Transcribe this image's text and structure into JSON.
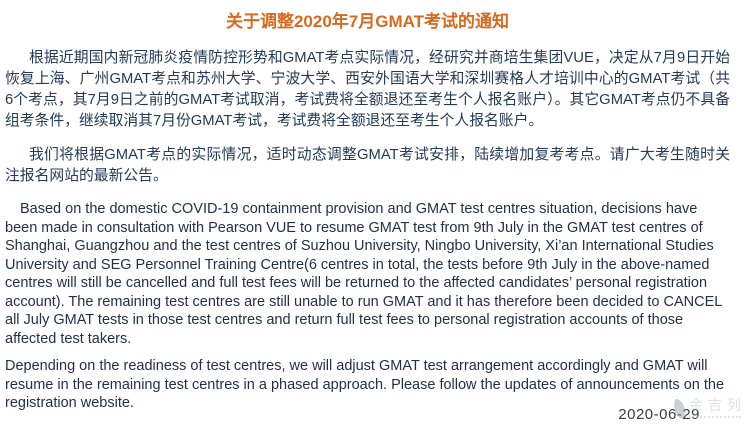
{
  "document": {
    "title": "关于调整2020年7月GMAT考试的通知",
    "paragraphs_zh": [
      "根据近期国内新冠肺炎疫情防控形势和GMAT考点实际情况，经研究并商培生集团VUE，决定从7月9日开始恢复上海、广州GMAT考点和苏州大学、宁波大学、西安外国语大学和深圳赛格人才培训中心的GMAT考试（共6个考点，其7月9日之前的GMAT考试取消，考试费将全额退还至考生个人报名账户）。其它GMAT考点仍不具备组考条件，继续取消其7月份GMAT考试，考试费将全额退还至考生个人报名账户。",
      "我们将根据GMAT考点的实际情况，适时动态调整GMAT考试安排，陆续增加复考考点。请广大考生随时关注报名网站的最新公告。"
    ],
    "paragraphs_en": [
      "Based on the domestic COVID-19 containment provision and GMAT test centres situation, decisions have been made in consultation with Pearson VUE to resume GMAT test from 9th July in the GMAT test centres of Shanghai, Guangzhou and the test centres of Suzhou University, Ningbo University, Xi’an International Studies University and SEG Personnel Training Centre(6 centres in total, the tests before 9th July in the above-named centres will still be cancelled and full test fees will be returned to the affected candidates’ personal registration account). The remaining test centres are still unable to run GMAT and it has therefore been decided to CANCEL all July GMAT tests in those test centres and return full test fees to personal registration accounts of those affected test takers.",
      "Depending on the readiness of test centres, we will adjust GMAT test arrangement accordingly and GMAT will resume in the remaining test centres in a phased approach. Please follow the updates of announcements on the registration website."
    ],
    "date": "2020-06-29",
    "watermark_text": "金吉列",
    "colors": {
      "title": "#D8691E",
      "body_zh": "#243A57",
      "body_en": "#22304A",
      "date": "#3C3C3C",
      "watermark": "#B7BCC1",
      "background": "#FFFFFF"
    }
  }
}
